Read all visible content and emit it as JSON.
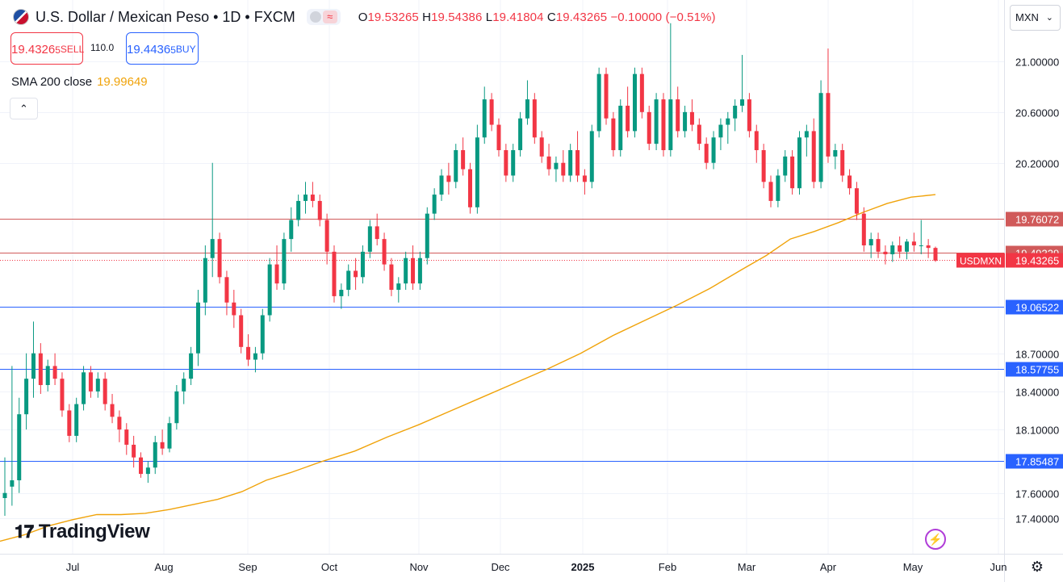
{
  "header": {
    "title": "U.S. Dollar / Mexican Peso • 1D • FXCM",
    "ohlc": [
      {
        "label": "O",
        "value": "19.53265"
      },
      {
        "label": "H",
        "value": "19.54386"
      },
      {
        "label": "L",
        "value": "19.41804"
      },
      {
        "label": "C",
        "value": "19.43265"
      }
    ],
    "change": "−0.10000 (−0.51%)"
  },
  "trade": {
    "sell_price": "19.4326",
    "sell_price_small": "5",
    "sell_label": "SELL",
    "spread": "110.0",
    "buy_price": "19.4436",
    "buy_price_small": "5",
    "buy_label": "BUY"
  },
  "indicator": {
    "label": "SMA 200 close",
    "value": "19.99649",
    "color": "#f0a30a"
  },
  "currency": "MXN",
  "logo_text": "TradingView",
  "colors": {
    "up": "#089981",
    "down": "#f23645",
    "sma": "#f0a30a",
    "h_red": "#d05a5a",
    "h_blue": "#2962ff"
  },
  "chart_data": {
    "type": "candlestick",
    "symbol": "USDMXN",
    "timeframe": "1D",
    "y_range": [
      17.2,
      21.4
    ],
    "price_axis_ticks": [
      "21.00000",
      "20.60000",
      "20.20000",
      "18.70000",
      "18.40000",
      "18.10000",
      "17.60000",
      "17.40000"
    ],
    "x_axis_labels": [
      "Jul",
      "Aug",
      "Sep",
      "Oct",
      "Nov",
      "Dec",
      "2025",
      "Feb",
      "Mar",
      "Apr",
      "May",
      "Jun"
    ],
    "horizontal_levels": [
      {
        "value": "19.76072",
        "kind": "red"
      },
      {
        "value": "19.49329",
        "kind": "red"
      },
      {
        "value": "19.06522",
        "kind": "blue"
      },
      {
        "value": "18.57755",
        "kind": "blue"
      },
      {
        "value": "17.85487",
        "kind": "blue"
      }
    ],
    "last_price": {
      "label": "USDMXN",
      "value": "19.43265"
    },
    "sma200": [
      [
        0,
        17.22
      ],
      [
        30,
        17.27
      ],
      [
        60,
        17.34
      ],
      [
        90,
        17.39
      ],
      [
        120,
        17.43
      ],
      [
        150,
        17.43
      ],
      [
        180,
        17.44
      ],
      [
        210,
        17.47
      ],
      [
        240,
        17.51
      ],
      [
        270,
        17.55
      ],
      [
        300,
        17.61
      ],
      [
        330,
        17.7
      ],
      [
        360,
        17.76
      ],
      [
        400,
        17.85
      ],
      [
        440,
        17.93
      ],
      [
        480,
        18.04
      ],
      [
        520,
        18.14
      ],
      [
        560,
        18.25
      ],
      [
        600,
        18.36
      ],
      [
        640,
        18.47
      ],
      [
        680,
        18.58
      ],
      [
        720,
        18.7
      ],
      [
        760,
        18.84
      ],
      [
        800,
        18.96
      ],
      [
        840,
        19.08
      ],
      [
        880,
        19.21
      ],
      [
        920,
        19.36
      ],
      [
        950,
        19.47
      ],
      [
        980,
        19.6
      ],
      [
        1010,
        19.66
      ],
      [
        1040,
        19.73
      ],
      [
        1070,
        19.81
      ],
      [
        1100,
        19.88
      ],
      [
        1130,
        19.93
      ],
      [
        1160,
        19.95
      ]
    ],
    "candles": [
      [
        17.56,
        17.88,
        17.42,
        17.6
      ],
      [
        17.65,
        18.6,
        17.5,
        17.7
      ],
      [
        17.7,
        18.35,
        17.6,
        18.22
      ],
      [
        18.22,
        18.7,
        18.1,
        18.5
      ],
      [
        18.5,
        18.95,
        18.35,
        18.7
      ],
      [
        18.7,
        18.78,
        18.38,
        18.45
      ],
      [
        18.45,
        18.65,
        18.4,
        18.6
      ],
      [
        18.6,
        18.7,
        18.45,
        18.5
      ],
      [
        18.5,
        18.55,
        18.2,
        18.25
      ],
      [
        18.25,
        18.3,
        18.0,
        18.05
      ],
      [
        18.05,
        18.35,
        18.0,
        18.3
      ],
      [
        18.3,
        18.6,
        18.25,
        18.55
      ],
      [
        18.55,
        18.6,
        18.35,
        18.4
      ],
      [
        18.4,
        18.55,
        18.35,
        18.5
      ],
      [
        18.5,
        18.55,
        18.25,
        18.3
      ],
      [
        18.3,
        18.38,
        18.15,
        18.2
      ],
      [
        18.2,
        18.25,
        18.0,
        18.1
      ],
      [
        18.1,
        18.15,
        17.9,
        17.98
      ],
      [
        17.98,
        18.05,
        17.8,
        17.88
      ],
      [
        17.88,
        17.92,
        17.72,
        17.75
      ],
      [
        17.75,
        17.85,
        17.68,
        17.8
      ],
      [
        17.8,
        18.05,
        17.75,
        18.0
      ],
      [
        18.0,
        18.1,
        17.9,
        17.95
      ],
      [
        17.95,
        18.2,
        17.92,
        18.15
      ],
      [
        18.15,
        18.45,
        18.1,
        18.4
      ],
      [
        18.4,
        18.55,
        18.3,
        18.5
      ],
      [
        18.5,
        18.75,
        18.45,
        18.7
      ],
      [
        18.7,
        19.2,
        18.6,
        19.1
      ],
      [
        19.1,
        19.55,
        19.0,
        19.45
      ],
      [
        19.45,
        20.2,
        19.3,
        19.6
      ],
      [
        19.6,
        19.65,
        19.25,
        19.3
      ],
      [
        19.3,
        19.35,
        19.0,
        19.1
      ],
      [
        19.1,
        19.2,
        18.9,
        19.0
      ],
      [
        19.0,
        19.05,
        18.7,
        18.75
      ],
      [
        18.75,
        18.85,
        18.6,
        18.65
      ],
      [
        18.65,
        18.75,
        18.55,
        18.7
      ],
      [
        18.7,
        19.05,
        18.65,
        19.0
      ],
      [
        19.0,
        19.45,
        18.95,
        19.4
      ],
      [
        19.4,
        19.55,
        19.2,
        19.25
      ],
      [
        19.25,
        19.65,
        19.2,
        19.6
      ],
      [
        19.6,
        19.85,
        19.5,
        19.75
      ],
      [
        19.75,
        19.95,
        19.7,
        19.9
      ],
      [
        19.9,
        20.05,
        19.8,
        19.95
      ],
      [
        19.95,
        20.05,
        19.85,
        19.9
      ],
      [
        19.9,
        19.95,
        19.7,
        19.75
      ],
      [
        19.75,
        19.8,
        19.4,
        19.5
      ],
      [
        19.5,
        19.55,
        19.1,
        19.15
      ],
      [
        19.15,
        19.25,
        19.05,
        19.2
      ],
      [
        19.2,
        19.4,
        19.15,
        19.35
      ],
      [
        19.35,
        19.45,
        19.2,
        19.3
      ],
      [
        19.3,
        19.55,
        19.25,
        19.5
      ],
      [
        19.5,
        19.75,
        19.45,
        19.7
      ],
      [
        19.7,
        19.8,
        19.55,
        19.6
      ],
      [
        19.6,
        19.65,
        19.35,
        19.4
      ],
      [
        19.4,
        19.45,
        19.15,
        19.2
      ],
      [
        19.2,
        19.3,
        19.1,
        19.25
      ],
      [
        19.25,
        19.5,
        19.2,
        19.45
      ],
      [
        19.45,
        19.55,
        19.2,
        19.25
      ],
      [
        19.25,
        19.5,
        19.2,
        19.45
      ],
      [
        19.45,
        19.85,
        19.4,
        19.8
      ],
      [
        19.8,
        20.0,
        19.75,
        19.95
      ],
      [
        19.95,
        20.15,
        19.9,
        20.1
      ],
      [
        20.1,
        20.2,
        19.95,
        20.05
      ],
      [
        20.05,
        20.35,
        20.0,
        20.3
      ],
      [
        20.3,
        20.4,
        20.1,
        20.15
      ],
      [
        20.15,
        20.2,
        19.8,
        19.85
      ],
      [
        19.85,
        20.5,
        19.8,
        20.4
      ],
      [
        20.4,
        20.8,
        20.35,
        20.7
      ],
      [
        20.7,
        20.75,
        20.45,
        20.5
      ],
      [
        20.5,
        20.55,
        20.25,
        20.3
      ],
      [
        20.3,
        20.35,
        20.05,
        20.1
      ],
      [
        20.1,
        20.35,
        20.05,
        20.3
      ],
      [
        20.3,
        20.6,
        20.25,
        20.55
      ],
      [
        20.55,
        20.85,
        20.5,
        20.7
      ],
      [
        20.7,
        20.75,
        20.35,
        20.4
      ],
      [
        20.4,
        20.45,
        20.2,
        20.25
      ],
      [
        20.25,
        20.35,
        20.1,
        20.15
      ],
      [
        20.15,
        20.25,
        20.05,
        20.2
      ],
      [
        20.2,
        20.3,
        20.05,
        20.1
      ],
      [
        20.1,
        20.35,
        20.05,
        20.3
      ],
      [
        20.3,
        20.45,
        20.05,
        20.1
      ],
      [
        20.1,
        20.15,
        19.95,
        20.05
      ],
      [
        20.05,
        20.5,
        20.0,
        20.45
      ],
      [
        20.45,
        20.95,
        20.4,
        20.9
      ],
      [
        20.9,
        20.95,
        20.5,
        20.55
      ],
      [
        20.55,
        20.6,
        20.25,
        20.3
      ],
      [
        20.3,
        20.7,
        20.25,
        20.65
      ],
      [
        20.65,
        20.8,
        20.4,
        20.45
      ],
      [
        20.45,
        20.95,
        20.4,
        20.9
      ],
      [
        20.9,
        20.95,
        20.55,
        20.6
      ],
      [
        20.6,
        20.65,
        20.3,
        20.35
      ],
      [
        20.35,
        20.75,
        20.3,
        20.7
      ],
      [
        20.7,
        20.75,
        20.25,
        20.3
      ],
      [
        20.3,
        21.3,
        20.25,
        20.7
      ],
      [
        20.7,
        20.8,
        20.4,
        20.45
      ],
      [
        20.45,
        20.65,
        20.4,
        20.6
      ],
      [
        20.6,
        20.7,
        20.45,
        20.5
      ],
      [
        20.5,
        20.55,
        20.3,
        20.35
      ],
      [
        20.35,
        20.4,
        20.15,
        20.2
      ],
      [
        20.2,
        20.45,
        20.15,
        20.4
      ],
      [
        20.4,
        20.55,
        20.3,
        20.5
      ],
      [
        20.5,
        20.6,
        20.35,
        20.55
      ],
      [
        20.55,
        20.7,
        20.45,
        20.65
      ],
      [
        20.65,
        21.05,
        20.6,
        20.7
      ],
      [
        20.7,
        20.75,
        20.4,
        20.45
      ],
      [
        20.45,
        20.5,
        20.2,
        20.3
      ],
      [
        20.3,
        20.35,
        20.0,
        20.05
      ],
      [
        20.05,
        20.1,
        19.85,
        19.9
      ],
      [
        19.9,
        20.15,
        19.85,
        20.1
      ],
      [
        20.1,
        20.3,
        20.05,
        20.25
      ],
      [
        20.25,
        20.3,
        19.95,
        20.0
      ],
      [
        20.0,
        20.45,
        19.95,
        20.4
      ],
      [
        20.4,
        20.5,
        20.25,
        20.45
      ],
      [
        20.45,
        20.55,
        20.0,
        20.05
      ],
      [
        20.05,
        20.85,
        20.0,
        20.75
      ],
      [
        20.75,
        21.1,
        20.2,
        20.25
      ],
      [
        20.25,
        20.35,
        20.15,
        20.3
      ],
      [
        20.3,
        20.35,
        20.05,
        20.1
      ],
      [
        20.1,
        20.15,
        19.95,
        20.0
      ],
      [
        20.0,
        20.05,
        19.75,
        19.8
      ],
      [
        19.8,
        19.85,
        19.5,
        19.55
      ],
      [
        19.55,
        19.65,
        19.45,
        19.6
      ],
      [
        19.6,
        19.65,
        19.45,
        19.5
      ],
      [
        19.5,
        19.55,
        19.4,
        19.48
      ],
      [
        19.48,
        19.58,
        19.42,
        19.55
      ],
      [
        19.55,
        19.62,
        19.45,
        19.5
      ],
      [
        19.5,
        19.6,
        19.44,
        19.58
      ],
      [
        19.58,
        19.65,
        19.5,
        19.55
      ],
      [
        19.55,
        19.75,
        19.48,
        19.55
      ],
      [
        19.55,
        19.6,
        19.45,
        19.53
      ],
      [
        19.53,
        19.54,
        19.42,
        19.43
      ]
    ]
  }
}
